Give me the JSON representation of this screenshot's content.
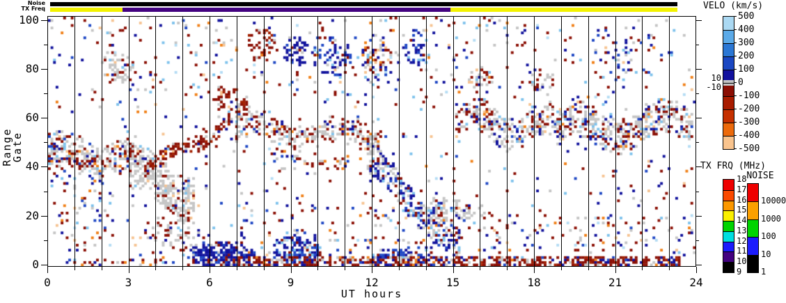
{
  "chart_data": {
    "type": "heatmap",
    "title": "",
    "xlabel": "UT hours",
    "ylabel": "Range Gate",
    "axes": {
      "x": {
        "label": "UT hours",
        "range": [
          0,
          24
        ],
        "major_ticks": [
          0,
          3,
          6,
          9,
          12,
          15,
          18,
          21,
          24
        ],
        "minor_step": 1
      },
      "y": {
        "label": "Range Gate",
        "range": [
          0,
          100
        ],
        "major_ticks": [
          0,
          20,
          40,
          60,
          80,
          100
        ],
        "minor_step": 10
      }
    },
    "hour_gridlines": {
      "from": 1,
      "to": 23,
      "color": "#000000"
    },
    "status_bars": {
      "noise": {
        "label": "Noise",
        "segments": [
          {
            "h0": 0.1,
            "h1": 23.3,
            "color": "#000000"
          }
        ]
      },
      "tx_freq": {
        "label": "TX Freq",
        "segments": [
          {
            "h0": 0.1,
            "h1": 2.78,
            "color": "#F2F200"
          },
          {
            "h0": 2.78,
            "h1": 14.9,
            "color": "#430280"
          },
          {
            "h0": 14.9,
            "h1": 23.3,
            "color": "#F2F200"
          }
        ]
      }
    },
    "colorbars": {
      "velocity": {
        "title": "VELO (km/s)",
        "tick_labels": [
          "500",
          "400",
          "300",
          "200",
          "100",
          "0",
          "-100",
          "-200",
          "-300",
          "-400",
          "-500"
        ],
        "colors": [
          "#ABD9F3",
          "#5CAAE8",
          "#2B77D4",
          "#1A47C2",
          "#12119E",
          "#8B0E04",
          "#A81C00",
          "#C53000",
          "#EC6A0C",
          "#F9C48E"
        ],
        "zero_band_labels": [
          "10",
          "-10"
        ],
        "zero_band_color": "#C5C5C5"
      },
      "tx_freq": {
        "title": "TX FRQ (MHz)",
        "tick_labels": [
          "18",
          "17",
          "16",
          "15",
          "14",
          "13",
          "12",
          "11",
          "10",
          "9"
        ],
        "colors": [
          "#EE0000",
          "#FB4A00",
          "#FC9800",
          "#FAF000",
          "#00D400",
          "#00DEE0",
          "#1C1CFC",
          "#430280",
          "#000000"
        ]
      },
      "noise": {
        "title": "NOISE",
        "tick_labels": [
          "10000",
          "1000",
          "100",
          "10",
          "1"
        ],
        "colors": [
          "#EE0000",
          "#FCA000",
          "#00D400",
          "#1C1CFC",
          "#000000"
        ]
      }
    },
    "cells": {
      "grid": {
        "cols": 256,
        "rows": 101
      },
      "seed": 1337,
      "palette": {
        "gray": "#C5C5C5",
        "maroon": "#8B0F04",
        "darkred": "#A32000",
        "red": "#C0391A",
        "orange": "#F08018",
        "peach": "#F6C391",
        "pale": "#FAE3C8",
        "navy": "#11129C",
        "blue": "#1E47C4",
        "mblue": "#2E7CD8",
        "lblue": "#7EC2EC",
        "paleblue": "#B4DCF4"
      },
      "weight_sets": {
        "gsMix": {
          "gray": 0.55,
          "maroon": 0.2,
          "navy": 0.07,
          "blue": 0.05,
          "lblue": 0.05,
          "orange": 0.04,
          "peach": 0.04
        },
        "gsMix2": {
          "gray": 0.5,
          "maroon": 0.22,
          "navy": 0.12,
          "blue": 0.05,
          "lblue": 0.05,
          "orange": 0.03,
          "peach": 0.03
        },
        "grayHeavy": {
          "gray": 0.8,
          "maroon": 0.08,
          "navy": 0.04,
          "lblue": 0.04,
          "peach": 0.04
        },
        "redHeavy": {
          "maroon": 0.62,
          "darkred": 0.15,
          "gray": 0.1,
          "navy": 0.06,
          "orange": 0.04,
          "peach": 0.03
        },
        "redMix": {
          "maroon": 0.45,
          "gray": 0.2,
          "navy": 0.12,
          "blue": 0.08,
          "lblue": 0.07,
          "orange": 0.08
        },
        "gsRed": {
          "gray": 0.45,
          "maroon": 0.35,
          "navy": 0.08,
          "lblue": 0.05,
          "orange": 0.04,
          "peach": 0.03
        },
        "blueGray": {
          "navy": 0.4,
          "blue": 0.15,
          "gray": 0.3,
          "lblue": 0.08,
          "maroon": 0.07
        },
        "navyHeavy": {
          "navy": 0.75,
          "blue": 0.15,
          "gray": 0.05,
          "maroon": 0.05
        },
        "navyBlue": {
          "navy": 0.55,
          "blue": 0.25,
          "lblue": 0.08,
          "gray": 0.07,
          "maroon": 0.05
        },
        "redGray": {
          "maroon": 0.5,
          "gray": 0.3,
          "navy": 0.1,
          "orange": 0.05,
          "peach": 0.05
        },
        "mixAll": {
          "maroon": 0.28,
          "navy": 0.2,
          "gray": 0.16,
          "lblue": 0.1,
          "blue": 0.08,
          "orange": 0.08,
          "peach": 0.06,
          "paleblue": 0.04
        },
        "blueMix": {
          "navy": 0.35,
          "blue": 0.2,
          "lblue": 0.2,
          "gray": 0.1,
          "maroon": 0.1,
          "peach": 0.05
        },
        "redNavy": {
          "maroon": 0.5,
          "darkred": 0.12,
          "navy": 0.2,
          "gray": 0.1,
          "blue": 0.05,
          "orange": 0.03
        }
      },
      "background": {
        "density": 0.022,
        "w": "mixAll"
      },
      "features": [
        {
          "type": "band",
          "h0": 0,
          "h1": 3.3,
          "g0": 46,
          "g1": 43,
          "amp": 3,
          "period": 2.5,
          "hw": 7,
          "density": 0.5,
          "w": "gsMix"
        },
        {
          "type": "band",
          "h0": 0,
          "h1": 3.0,
          "g0": 41,
          "g1": 40,
          "amp": 2,
          "period": 3,
          "hw": 3,
          "density": 0.3,
          "w": "redMix"
        },
        {
          "type": "band",
          "h0": 3.0,
          "h1": 5.4,
          "g0": 40,
          "g1": 27,
          "amp": 3,
          "period": 2.4,
          "hw": 10,
          "density": 0.62,
          "w": "grayHeavy"
        },
        {
          "type": "band",
          "h0": 3.6,
          "h1": 7.4,
          "g0": 38,
          "g1": 63,
          "amp": 2,
          "period": 3,
          "hw": 3.5,
          "density": 0.55,
          "w": "redHeavy"
        },
        {
          "type": "band",
          "h0": 6.9,
          "h1": 12.4,
          "g0": 56,
          "g1": 51,
          "amp": 3,
          "period": 3.2,
          "hw": 6,
          "density": 0.5,
          "w": "gsRed"
        },
        {
          "type": "band",
          "h0": 11.8,
          "h1": 15.3,
          "g0": 44,
          "g1": 6,
          "amp": 2,
          "period": 3,
          "hw": 6.5,
          "density": 0.55,
          "w": "blueGray"
        },
        {
          "type": "band",
          "h0": 15.1,
          "h1": 19.0,
          "g0": 58,
          "g1": 55,
          "amp": 4,
          "period": 2.8,
          "hw": 7,
          "density": 0.45,
          "w": "gsMix2"
        },
        {
          "type": "band",
          "h0": 18.8,
          "h1": 23.9,
          "g0": 55,
          "g1": 57,
          "amp": 4,
          "period": 3.2,
          "hw": 7.5,
          "density": 0.5,
          "w": "gsMix2"
        },
        {
          "type": "band",
          "h0": 8.0,
          "h1": 11.5,
          "g0": 43,
          "g1": 40,
          "amp": 2,
          "period": 2.2,
          "hw": 3,
          "density": 0.22,
          "w": "redMix"
        },
        {
          "type": "blob",
          "h": 6.4,
          "g": 4,
          "rh": 1.3,
          "rg": 6,
          "density": 0.8,
          "w": "navyHeavy"
        },
        {
          "type": "blob",
          "h": 9.2,
          "g": 6,
          "rh": 0.9,
          "rg": 8,
          "density": 0.6,
          "w": "navyBlue"
        },
        {
          "type": "blob",
          "h": 13.0,
          "g": 3,
          "rh": 0.9,
          "rg": 4,
          "density": 0.5,
          "w": "navyBlue"
        },
        {
          "type": "blob",
          "h": 15.0,
          "g": 22,
          "rh": 1.3,
          "rg": 6,
          "density": 0.45,
          "w": "grayHeavy"
        },
        {
          "type": "blob",
          "h": 7.9,
          "g": 89,
          "rh": 0.55,
          "rg": 7,
          "density": 0.5,
          "w": "redHeavy"
        },
        {
          "type": "blob",
          "h": 9.2,
          "g": 86,
          "rh": 0.5,
          "rg": 7,
          "density": 0.45,
          "w": "navyHeavy"
        },
        {
          "type": "blob",
          "h": 10.5,
          "g": 84,
          "rh": 0.8,
          "rg": 8,
          "density": 0.4,
          "w": "navyBlue"
        },
        {
          "type": "blob",
          "h": 12.1,
          "g": 84,
          "rh": 0.7,
          "rg": 10,
          "density": 0.4,
          "w": "mixAll"
        },
        {
          "type": "blob",
          "h": 13.6,
          "g": 88,
          "rh": 0.45,
          "rg": 8,
          "density": 0.45,
          "w": "navyBlue"
        },
        {
          "type": "blob",
          "h": 2.6,
          "g": 80,
          "rh": 0.7,
          "rg": 8,
          "density": 0.35,
          "w": "gsMix"
        },
        {
          "type": "blob",
          "h": 16.0,
          "g": 75,
          "rh": 0.5,
          "rg": 6,
          "density": 0.4,
          "w": "redGray"
        },
        {
          "type": "blob",
          "h": 18.3,
          "g": 74,
          "rh": 0.5,
          "rg": 6,
          "density": 0.35,
          "w": "gsRed"
        },
        {
          "type": "blob",
          "h": 6.6,
          "g": 68,
          "rh": 0.5,
          "rg": 6,
          "density": 0.5,
          "w": "redHeavy"
        },
        {
          "type": "blob",
          "h": 4.6,
          "g": 12,
          "rh": 1.2,
          "rg": 9,
          "density": 0.3,
          "w": "gsRed"
        },
        {
          "type": "blob",
          "h": 1.2,
          "g": 25,
          "rh": 1.3,
          "rg": 20,
          "density": 0.1,
          "w": "mixAll"
        },
        {
          "type": "blob",
          "h": 21.5,
          "g": 85,
          "rh": 1.5,
          "rg": 12,
          "density": 0.1,
          "w": "blueMix"
        },
        {
          "type": "rect",
          "h0": 6.8,
          "h1": 23.4,
          "g0": 0,
          "g1": 3.5,
          "density": 0.6,
          "w": "redNavy"
        },
        {
          "type": "rect",
          "h0": 0,
          "h1": 6.8,
          "g0": 0,
          "g1": 2,
          "density": 0.15,
          "w": "redMix"
        },
        {
          "type": "rect",
          "h0": 15,
          "h1": 24,
          "g0": 4,
          "g1": 20,
          "density": 0.07,
          "w": "mixAll"
        },
        {
          "type": "rect",
          "h0": 7,
          "h1": 15,
          "g0": 4,
          "g1": 25,
          "density": 0.06,
          "w": "mixAll"
        },
        {
          "type": "rect",
          "h0": 0,
          "h1": 24,
          "g0": 60,
          "g1": 100,
          "density": 0.018,
          "w": "mixAll"
        }
      ]
    }
  }
}
